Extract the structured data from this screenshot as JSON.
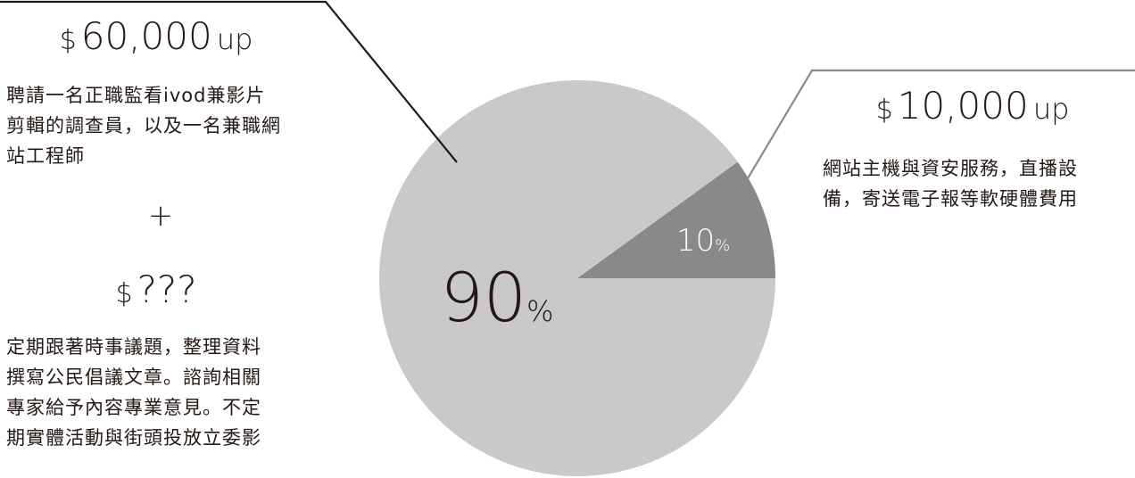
{
  "chart_data": {
    "type": "pie",
    "slices": [
      {
        "value": 10,
        "label": "10",
        "unit": "%",
        "color": "#898989"
      },
      {
        "value": 90,
        "label": "90",
        "unit": "%",
        "color": "#c9c9c9"
      }
    ]
  },
  "left": {
    "amount": {
      "currency": "$",
      "value": "60,000",
      "suffix": "up"
    },
    "desc_lines": [
      "聘請一名正職監看ivod兼影片",
      "剪輯的調查員，以及一名兼職網",
      "站工程師"
    ],
    "plus": "+",
    "amount2": {
      "currency": "$",
      "value": "???"
    },
    "desc2_lines": [
      "定期跟著時事議題，整理資料",
      "撰寫公民倡議文章。諮詢相關",
      "專家給予內容專業意見。不定",
      "期實體活動與街頭投放立委影"
    ]
  },
  "right": {
    "amount": {
      "currency": "$",
      "value": "10,000",
      "suffix": "up"
    },
    "desc_lines": [
      "網站主機與資安服務，直播設",
      "備，寄送電子報等軟硬體費用"
    ]
  },
  "colors": {
    "text": "#231815",
    "leader_line_left": "#231815",
    "leader_line_right": "#898989"
  }
}
